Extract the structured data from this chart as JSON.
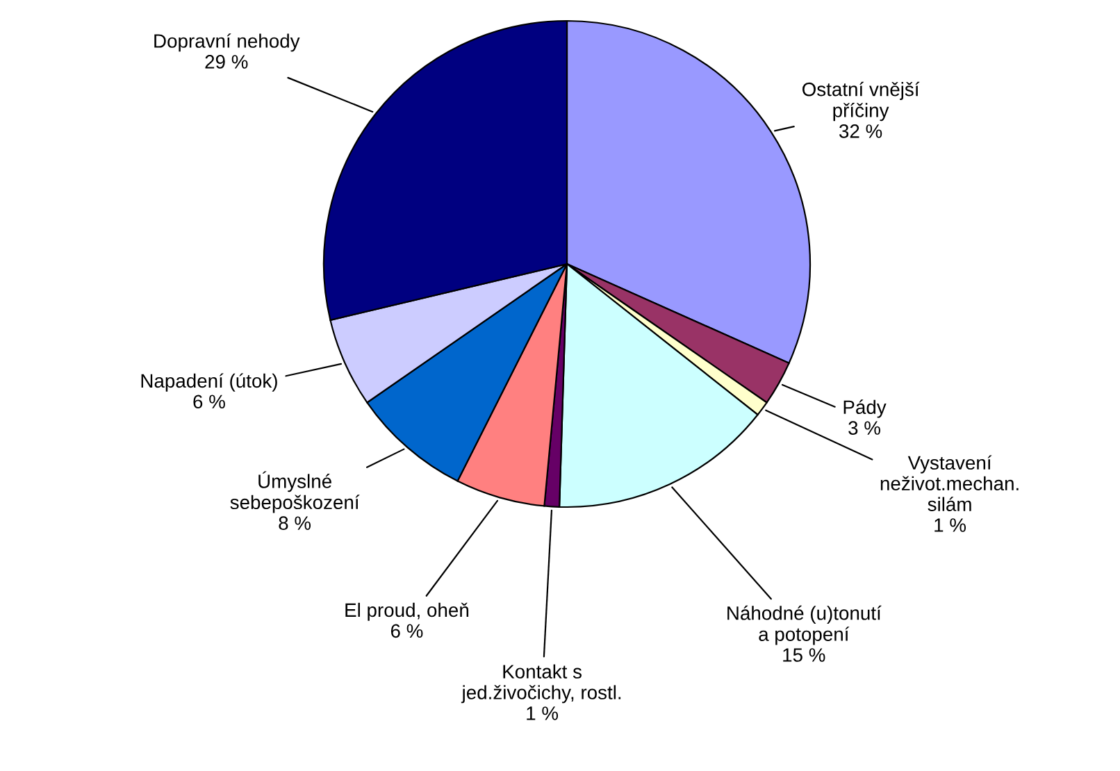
{
  "chart_data": {
    "type": "pie",
    "categories": [
      "Ostatní vnější\npříčiny",
      "Pády",
      "Vystavení\nneživot.mechan.\nsilám",
      "Náhodné (u)tonutí\na potopení",
      "Kontakt s\njed.živočichy, rostl.",
      "El proud, oheň",
      "Úmyslné\nsebepoškození",
      "Napadení (útok)",
      "Dopravní nehody"
    ],
    "values": [
      32,
      3,
      1,
      15,
      1,
      6,
      8,
      6,
      29
    ],
    "value_labels": [
      "32 %",
      "3 %",
      "1 %",
      "15 %",
      "1 %",
      "6 %",
      "8 %",
      "6 %",
      "29 %"
    ],
    "colors": [
      "#9999ff",
      "#993366",
      "#ffffcc",
      "#ccffff",
      "#660066",
      "#ff8080",
      "#0066cc",
      "#ccccff",
      "#000080"
    ],
    "legend": false
  }
}
